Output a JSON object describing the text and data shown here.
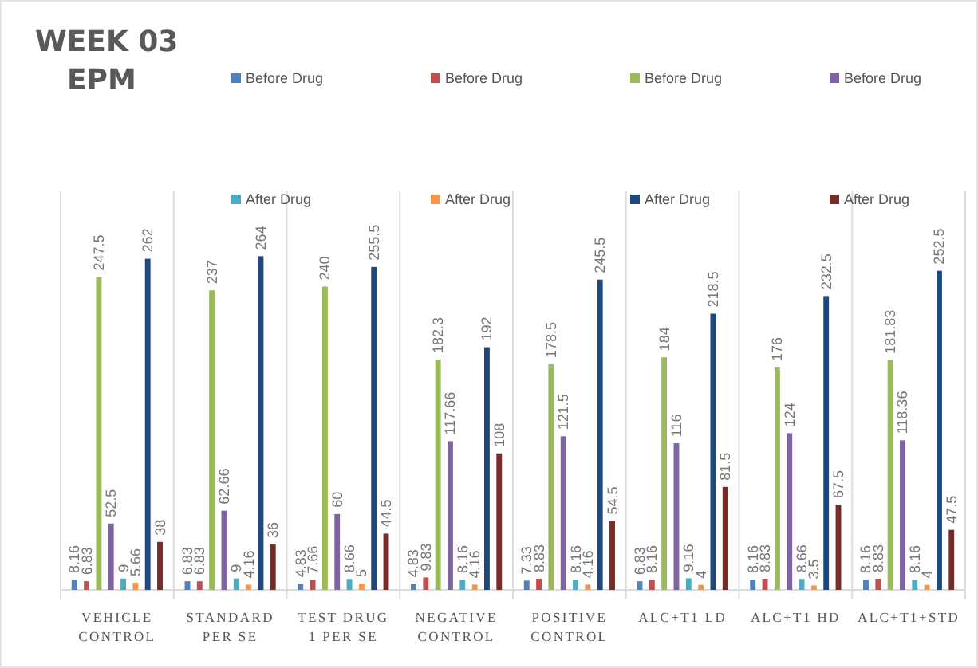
{
  "chart_data": {
    "type": "bar",
    "title": "WEEK 03 EPM",
    "categories": [
      "VEHICLE CONTROL",
      "STANDARD PER SE",
      "TEST DRUG 1 PER SE",
      "NEGATIVE CONTROL",
      "POSITIVE CONTROL",
      "ALC+T1 LD",
      "ALC+T1 HD",
      "ALC+T1+STD"
    ],
    "series": [
      {
        "name": "Before Drug",
        "color": "#4f81bd",
        "values": [
          8.16,
          6.83,
          4.83,
          4.83,
          7.33,
          6.83,
          8.16,
          8.16
        ]
      },
      {
        "name": "Before Drug",
        "color": "#c0504d",
        "values": [
          6.83,
          6.83,
          7.66,
          9.83,
          8.83,
          8.16,
          8.83,
          8.83
        ]
      },
      {
        "name": "Before Drug",
        "color": "#9bbb59",
        "values": [
          247.5,
          237,
          240,
          182.3,
          178.5,
          184,
          176,
          181.83
        ]
      },
      {
        "name": "Before Drug",
        "color": "#8064a2",
        "values": [
          52.5,
          62.66,
          60,
          117.66,
          121.5,
          116,
          124,
          118.36
        ]
      },
      {
        "name": "After Drug",
        "color": "#4bacc6",
        "values": [
          9,
          9,
          8.66,
          8.16,
          8.16,
          9.16,
          8.66,
          8.16
        ]
      },
      {
        "name": "After Drug",
        "color": "#f79646",
        "values": [
          5.66,
          4.16,
          5,
          4.16,
          4.16,
          4,
          3.5,
          4
        ]
      },
      {
        "name": "After Drug",
        "color": "#1f497d",
        "values": [
          262,
          264,
          255.5,
          192,
          245.5,
          218.5,
          232.5,
          252.5
        ]
      },
      {
        "name": "After Drug",
        "color": "#772c2a",
        "values": [
          38,
          36,
          44.5,
          108,
          54.5,
          81.5,
          67.5,
          47.5
        ]
      }
    ],
    "data_labels": true,
    "legend": "top"
  }
}
